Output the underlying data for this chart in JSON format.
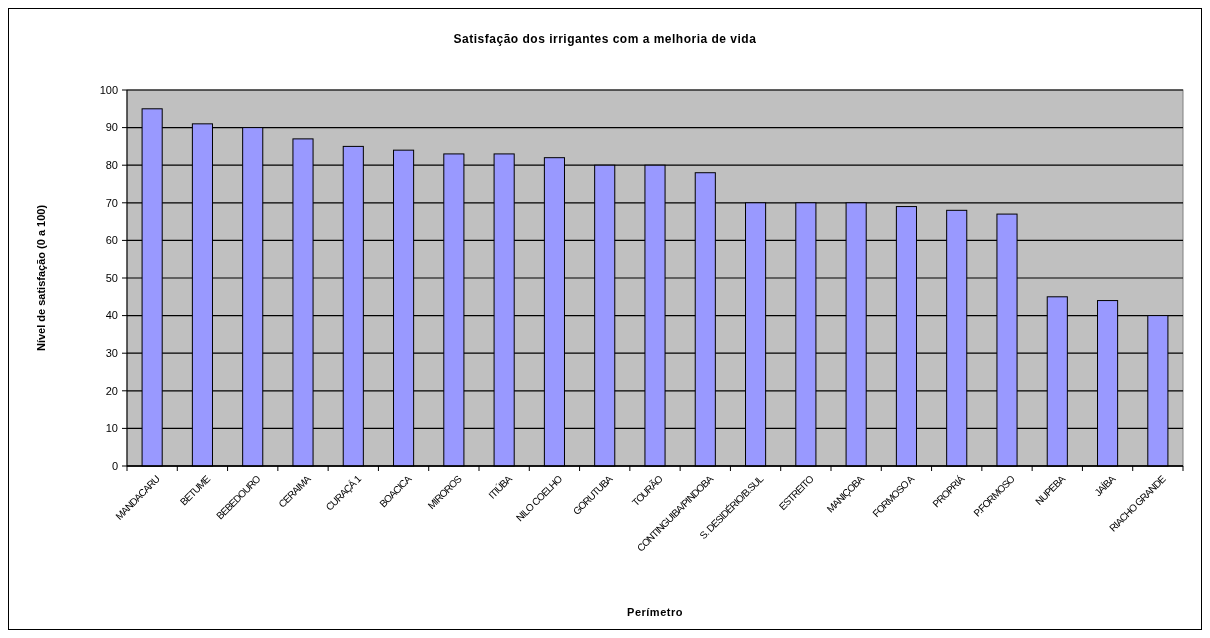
{
  "chart_data": {
    "type": "bar",
    "title": "Satisfação dos irrigantes com a melhoria de vida",
    "xlabel": "Perímetro",
    "ylabel": "Nível de satisfação (0 a 100)",
    "categories": [
      "MANDACARU",
      "BETUME",
      "BEBEDOURO",
      "CERAIMA",
      "CURAÇÁ 1",
      "BOACICA",
      "MIROROS",
      "ITIÚBA",
      "NILO COELHO",
      "GORUTUBA",
      "TOURÃO",
      "CONTINGUIBA/PINDOBA",
      "S. DESIDÉRIO/B.SUL",
      "ESTREITO",
      "MANIÇOBA",
      "FORMOSO A",
      "PROPRIÁ",
      "P.FORMOSO",
      "NUPEBA",
      "JAÍBA",
      "RIACHO GRANDE"
    ],
    "values": [
      95,
      91,
      90,
      87,
      85,
      84,
      83,
      83,
      82,
      80,
      80,
      78,
      70,
      70,
      70,
      69,
      68,
      67,
      45,
      44,
      40
    ],
    "color": "#9999ff",
    "ylim": [
      0,
      100
    ],
    "yticks": [
      0,
      10,
      20,
      30,
      40,
      50,
      60,
      70,
      80,
      90,
      100
    ],
    "grid": "y"
  }
}
